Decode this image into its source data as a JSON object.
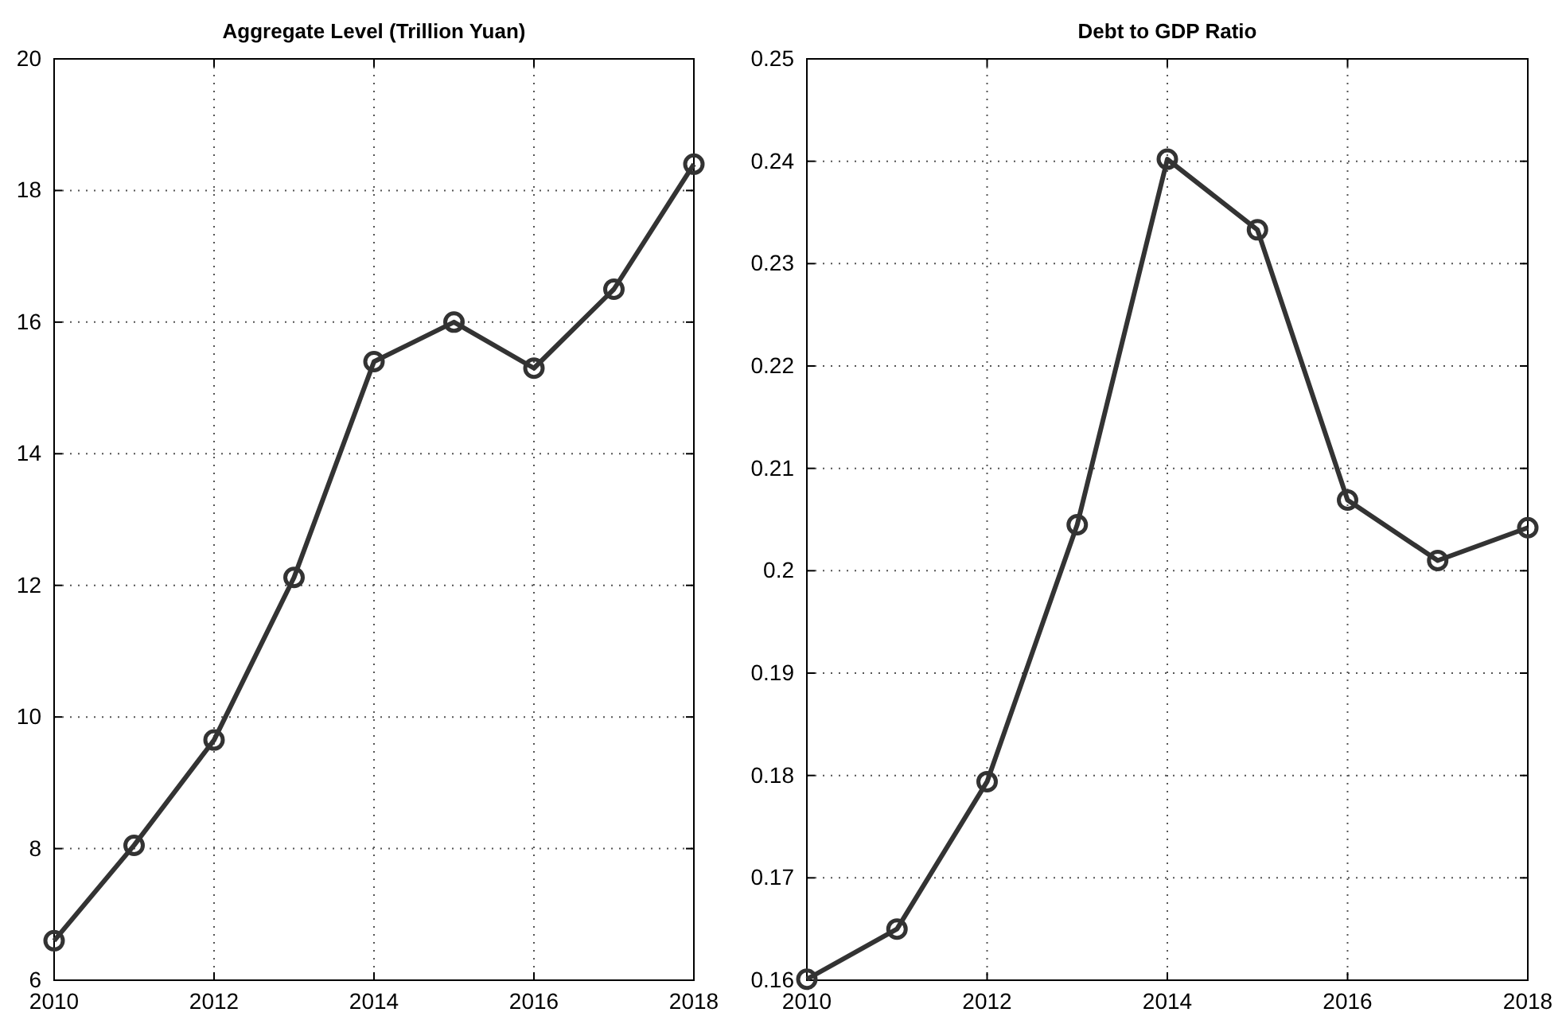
{
  "chart_data": [
    {
      "type": "line",
      "title": "Aggregate Level (Trillion Yuan)",
      "x": [
        2010,
        2011,
        2012,
        2013,
        2014,
        2015,
        2016,
        2017,
        2018
      ],
      "series": [
        {
          "color": "#333333",
          "values": [
            6.6,
            8.05,
            9.65,
            12.12,
            15.4,
            16.0,
            15.3,
            16.5,
            18.4
          ]
        }
      ],
      "xlim": [
        2010,
        2018
      ],
      "xticks": [
        2010,
        2012,
        2014,
        2016,
        2018
      ],
      "ylim": [
        6,
        20
      ],
      "yticks": [
        6,
        8,
        10,
        12,
        14,
        16,
        18,
        20
      ],
      "grid": true,
      "marker": "circle",
      "line_style": "solid"
    },
    {
      "type": "line",
      "title": "Debt to GDP Ratio",
      "x": [
        2010,
        2011,
        2012,
        2013,
        2014,
        2015,
        2016,
        2017,
        2018
      ],
      "series": [
        {
          "color": "#333333",
          "values": [
            0.1601,
            0.165,
            0.1794,
            0.2045,
            0.2402,
            0.2333,
            0.2069,
            0.201,
            0.2042
          ]
        }
      ],
      "xlim": [
        2010,
        2018
      ],
      "xticks": [
        2010,
        2012,
        2014,
        2016,
        2018
      ],
      "ylim": [
        0.16,
        0.25
      ],
      "yticks": [
        0.16,
        0.17,
        0.18,
        0.19,
        0.2,
        0.21,
        0.22,
        0.23,
        0.24,
        0.25
      ],
      "grid": true,
      "marker": "circle",
      "line_style": "solid"
    }
  ]
}
